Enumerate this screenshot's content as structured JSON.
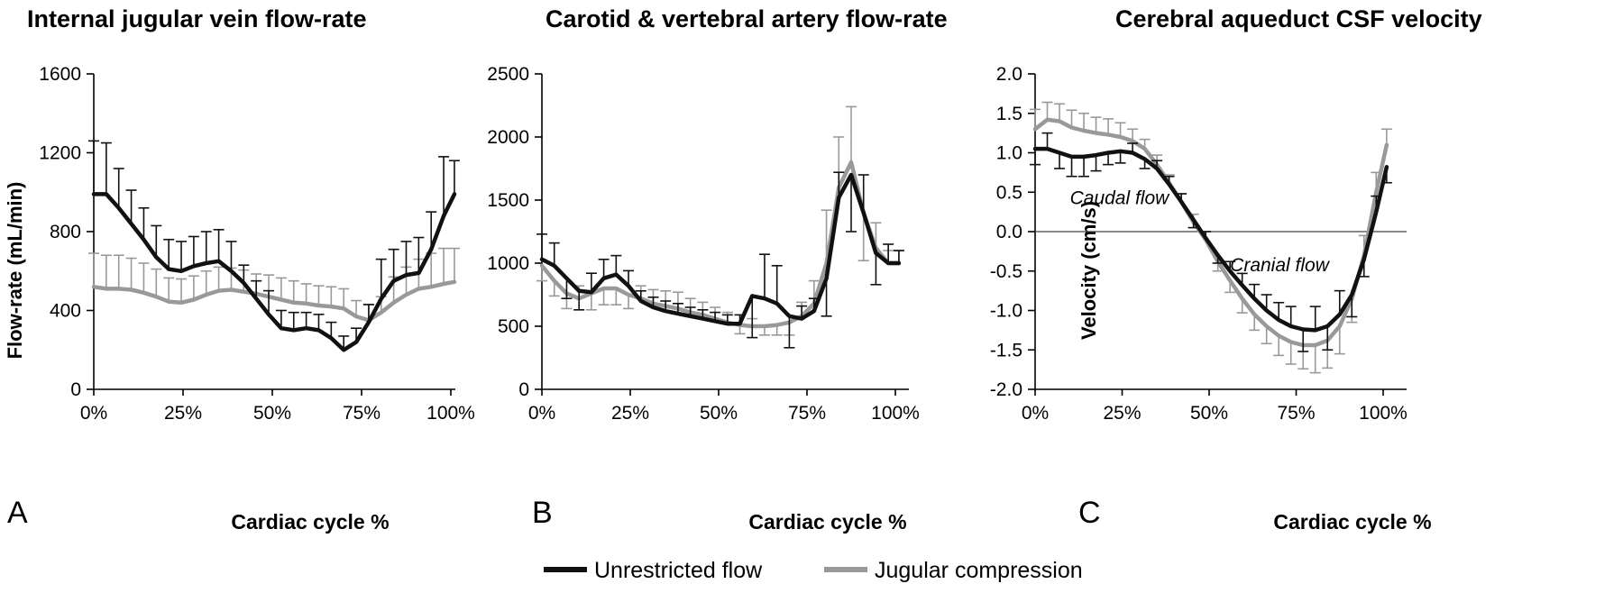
{
  "legend": [
    {
      "label": "Unrestricted flow",
      "color": "#111111"
    },
    {
      "label": "Jugular compression",
      "color": "#999999"
    }
  ],
  "chart_data": [
    {
      "type": "line",
      "panel_letter": "A",
      "title": "Internal jugular vein flow-rate",
      "xlabel": "Cardiac cycle %",
      "ylabel": "Flow-rate (mL/min)",
      "xlim": [
        0,
        100
      ],
      "ylim": [
        0,
        1600
      ],
      "yticks": [
        0,
        400,
        800,
        1200,
        1600
      ],
      "ytick_labels": [
        "0",
        "400",
        "800",
        "1200",
        "1600"
      ],
      "xticks": [
        0,
        25,
        50,
        75,
        100
      ],
      "xtick_labels": [
        "0%",
        "25%",
        "50%",
        "75%",
        "100%"
      ],
      "x": [
        0,
        3.5,
        7,
        10.5,
        14,
        17.5,
        21,
        24.5,
        28,
        31.5,
        35,
        38.5,
        42,
        45.5,
        49,
        52.5,
        56,
        59.5,
        63,
        66.5,
        70,
        73.5,
        77,
        80.5,
        84,
        87.5,
        91,
        94.5,
        98,
        101
      ],
      "series": [
        {
          "name": "Unrestricted flow",
          "color": "#111111",
          "values": [
            990,
            990,
            920,
            840,
            760,
            670,
            610,
            600,
            625,
            640,
            650,
            600,
            540,
            460,
            380,
            310,
            300,
            310,
            300,
            260,
            200,
            240,
            340,
            460,
            550,
            580,
            590,
            710,
            880,
            990
          ],
          "err": [
            270,
            260,
            200,
            170,
            160,
            160,
            150,
            150,
            150,
            160,
            160,
            150,
            90,
            90,
            120,
            90,
            90,
            80,
            80,
            80,
            70,
            70,
            90,
            200,
            160,
            170,
            180,
            190,
            300,
            170
          ]
        },
        {
          "name": "Jugular compression",
          "color": "#999999",
          "values": [
            520,
            510,
            510,
            505,
            490,
            470,
            445,
            440,
            455,
            480,
            500,
            505,
            495,
            485,
            470,
            455,
            440,
            435,
            425,
            420,
            410,
            370,
            350,
            390,
            440,
            480,
            510,
            520,
            535,
            545
          ],
          "err": [
            170,
            170,
            170,
            160,
            150,
            140,
            120,
            120,
            120,
            120,
            120,
            110,
            110,
            100,
            110,
            110,
            110,
            100,
            100,
            100,
            100,
            80,
            80,
            80,
            130,
            140,
            150,
            170,
            180,
            170
          ]
        }
      ]
    },
    {
      "type": "line",
      "panel_letter": "B",
      "title": "Carotid & vertebral artery flow-rate",
      "xlabel": "Cardiac cycle %",
      "ylabel": "",
      "xlim": [
        0,
        100
      ],
      "ylim": [
        0,
        2500
      ],
      "yticks": [
        0,
        500,
        1000,
        1500,
        2000,
        2500
      ],
      "ytick_labels": [
        "0",
        "500",
        "1000",
        "1500",
        "2000",
        "2500"
      ],
      "xticks": [
        0,
        25,
        50,
        75,
        100
      ],
      "xtick_labels": [
        "0%",
        "25%",
        "50%",
        "75%",
        "100%"
      ],
      "x": [
        0,
        3.5,
        7,
        10.5,
        14,
        17.5,
        21,
        24.5,
        28,
        31.5,
        35,
        38.5,
        42,
        45.5,
        49,
        52.5,
        56,
        59.5,
        63,
        66.5,
        70,
        73.5,
        77,
        80.5,
        84,
        87.5,
        91,
        94.5,
        98,
        101
      ],
      "series": [
        {
          "name": "Unrestricted flow",
          "color": "#111111",
          "values": [
            1030,
            980,
            880,
            780,
            770,
            880,
            910,
            820,
            700,
            650,
            620,
            600,
            580,
            560,
            540,
            520,
            520,
            740,
            720,
            680,
            580,
            560,
            620,
            880,
            1520,
            1700,
            1400,
            1080,
            1000,
            1000
          ],
          "err": [
            200,
            180,
            160,
            150,
            150,
            150,
            150,
            120,
            80,
            80,
            80,
            80,
            70,
            70,
            70,
            70,
            70,
            330,
            350,
            300,
            250,
            100,
            100,
            300,
            200,
            450,
            300,
            250,
            150,
            100
          ],
          "err_dir": [
            1,
            1,
            -1,
            -1,
            1,
            1,
            1,
            1,
            1,
            1,
            1,
            1,
            1,
            1,
            1,
            1,
            1,
            -1,
            1,
            1,
            -1,
            1,
            1,
            -1,
            1,
            -1,
            1,
            -1,
            1,
            1
          ]
        },
        {
          "name": "Jugular compression",
          "color": "#999999",
          "values": [
            980,
            860,
            760,
            720,
            760,
            800,
            800,
            750,
            720,
            680,
            660,
            640,
            610,
            590,
            560,
            530,
            510,
            500,
            500,
            510,
            530,
            580,
            680,
            1000,
            1600,
            1800,
            1400,
            1120,
            1000,
            1000
          ],
          "err": [
            120,
            120,
            120,
            100,
            130,
            130,
            130,
            110,
            100,
            110,
            120,
            130,
            110,
            100,
            90,
            80,
            70,
            60,
            70,
            80,
            100,
            110,
            180,
            420,
            400,
            440,
            380,
            200,
            100,
            100
          ],
          "err_dir": [
            -1,
            -1,
            -1,
            1,
            -1,
            -1,
            -1,
            -1,
            1,
            1,
            1,
            1,
            1,
            1,
            1,
            1,
            -1,
            1,
            -1,
            -1,
            -1,
            1,
            1,
            1,
            1,
            1,
            -1,
            1,
            1,
            1
          ]
        }
      ]
    },
    {
      "type": "line",
      "panel_letter": "C",
      "title": "Cerebral aqueduct CSF velocity",
      "xlabel": "Cardiac cycle %",
      "ylabel": "Velocity  (cm/s)",
      "xlim": [
        0,
        100
      ],
      "ylim": [
        -2.0,
        2.0
      ],
      "yticks": [
        -2.0,
        -1.5,
        -1.0,
        -0.5,
        0.0,
        0.5,
        1.0,
        1.5,
        2.0
      ],
      "ytick_labels": [
        "-2.0",
        "-1.5",
        "-1.0",
        "-0.5",
        "0.0",
        "0.5",
        "1.0",
        "1.5",
        "2.0"
      ],
      "xticks": [
        0,
        25,
        50,
        75,
        100
      ],
      "xtick_labels": [
        "0%",
        "25%",
        "50%",
        "75%",
        "100%"
      ],
      "zero_line": true,
      "annotations": [
        {
          "text": "Caudal flow",
          "x": 10,
          "y": 0.35
        },
        {
          "text": "Cranial flow",
          "x": 56,
          "y": -0.5
        }
      ],
      "x": [
        0,
        3.5,
        7,
        10.5,
        14,
        17.5,
        21,
        24.5,
        28,
        31.5,
        35,
        38.5,
        42,
        45.5,
        49,
        52.5,
        56,
        59.5,
        63,
        66.5,
        70,
        73.5,
        77,
        80.5,
        84,
        87.5,
        91,
        94.5,
        98,
        101
      ],
      "series": [
        {
          "name": "Unrestricted flow",
          "color": "#111111",
          "values": [
            1.05,
            1.05,
            1.0,
            0.95,
            0.95,
            0.97,
            1.0,
            1.02,
            1.0,
            0.92,
            0.8,
            0.6,
            0.38,
            0.15,
            -0.08,
            -0.3,
            -0.5,
            -0.68,
            -0.85,
            -1.0,
            -1.12,
            -1.2,
            -1.24,
            -1.25,
            -1.2,
            -1.05,
            -0.8,
            -0.35,
            0.25,
            0.82
          ],
          "err": [
            0.2,
            0.2,
            0.2,
            0.25,
            0.25,
            0.2,
            0.15,
            0.15,
            0.12,
            0.12,
            0.1,
            0.1,
            0.1,
            0.1,
            0.08,
            0.1,
            0.12,
            0.15,
            0.18,
            0.2,
            0.22,
            0.25,
            0.28,
            0.3,
            0.3,
            0.3,
            0.28,
            0.22,
            0.2,
            0.2
          ],
          "err_dir": [
            -1,
            1,
            -1,
            -1,
            -1,
            -1,
            -1,
            -1,
            1,
            -1,
            1,
            1,
            1,
            -1,
            1,
            -1,
            1,
            1,
            1,
            1,
            1,
            1,
            -1,
            1,
            -1,
            1,
            -1,
            -1,
            1,
            -1
          ]
        },
        {
          "name": "Jugular compression",
          "color": "#999999",
          "values": [
            1.3,
            1.42,
            1.4,
            1.32,
            1.28,
            1.25,
            1.23,
            1.2,
            1.15,
            1.05,
            0.85,
            0.62,
            0.38,
            0.12,
            -0.1,
            -0.38,
            -0.62,
            -0.85,
            -1.05,
            -1.2,
            -1.32,
            -1.4,
            -1.44,
            -1.44,
            -1.38,
            -1.2,
            -0.85,
            -0.3,
            0.5,
            1.1
          ],
          "err": [
            0.25,
            0.22,
            0.22,
            0.22,
            0.22,
            0.2,
            0.2,
            0.18,
            0.15,
            0.12,
            0.12,
            0.1,
            0.1,
            0.1,
            0.1,
            0.12,
            0.15,
            0.18,
            0.2,
            0.22,
            0.25,
            0.28,
            0.3,
            0.35,
            0.35,
            0.35,
            0.3,
            0.25,
            0.25,
            0.2
          ],
          "err_dir": [
            1,
            1,
            1,
            1,
            1,
            1,
            1,
            1,
            1,
            1,
            1,
            1,
            1,
            1,
            1,
            -1,
            -1,
            -1,
            -1,
            -1,
            -1,
            -1,
            -1,
            -1,
            -1,
            -1,
            -1,
            1,
            1,
            1
          ]
        }
      ]
    }
  ]
}
